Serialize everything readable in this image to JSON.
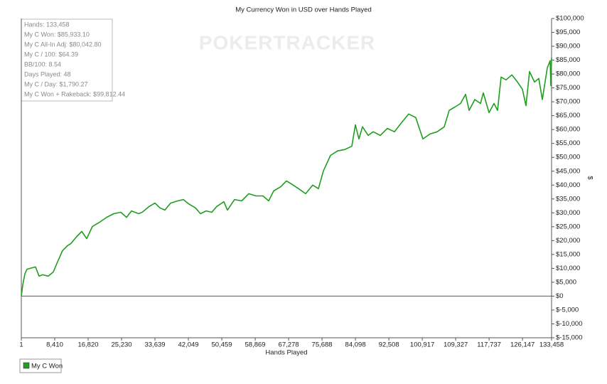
{
  "chart_data": {
    "type": "line",
    "title": "My Currency Won in USD over Hands Played",
    "xlabel": "Hands Played",
    "ylabel": "$",
    "watermark": "POKERTRACKER",
    "stats": [
      "Hands: 133,458",
      "My C Won: $85,933.10",
      "My C All-In Adj: $80,042.80",
      "My C / 100: $64.39",
      "BB/100: 8.54",
      "Days Played: 48",
      "My C / Day: $1,790.27",
      "My C Won + Rakeback: $99,812.44"
    ],
    "xlim": [
      1,
      133458
    ],
    "ylim": [
      -15000,
      100000
    ],
    "xticks": [
      1,
      {
        "value": 8410,
        "label": "8,410"
      },
      {
        "value": 16820,
        "label": "16,820"
      },
      {
        "value": 25230,
        "label": "25,230"
      },
      {
        "value": 33639,
        "label": "33,639"
      },
      {
        "value": 42049,
        "label": "42,049"
      },
      {
        "value": 50459,
        "label": "50,459"
      },
      {
        "value": 58869,
        "label": "58,869"
      },
      {
        "value": 67278,
        "label": "67,278"
      },
      {
        "value": 75688,
        "label": "75,688"
      },
      {
        "value": 84098,
        "label": "84,098"
      },
      {
        "value": 92508,
        "label": "92,508"
      },
      {
        "value": 100917,
        "label": "100,917"
      },
      {
        "value": 109327,
        "label": "109,327"
      },
      {
        "value": 117737,
        "label": "117,737"
      },
      {
        "value": 126147,
        "label": "126,147"
      },
      {
        "value": 133458,
        "label": "133,458"
      }
    ],
    "yticks": [
      {
        "value": -15000,
        "label": "$-15,000"
      },
      {
        "value": -10000,
        "label": "$-10,000"
      },
      {
        "value": -5000,
        "label": "$-5,000"
      },
      {
        "value": 0,
        "label": "$0"
      },
      {
        "value": 5000,
        "label": "$5,000"
      },
      {
        "value": 10000,
        "label": "$10,000"
      },
      {
        "value": 15000,
        "label": "$15,000"
      },
      {
        "value": 20000,
        "label": "$20,000"
      },
      {
        "value": 25000,
        "label": "$25,000"
      },
      {
        "value": 30000,
        "label": "$30,000"
      },
      {
        "value": 35000,
        "label": "$35,000"
      },
      {
        "value": 40000,
        "label": "$40,000"
      },
      {
        "value": 45000,
        "label": "$45,000"
      },
      {
        "value": 50000,
        "label": "$50,000"
      },
      {
        "value": 55000,
        "label": "$55,000"
      },
      {
        "value": 60000,
        "label": "$60,000"
      },
      {
        "value": 65000,
        "label": "$65,000"
      },
      {
        "value": 70000,
        "label": "$70,000"
      },
      {
        "value": 75000,
        "label": "$75,000"
      },
      {
        "value": 80000,
        "label": "$80,000"
      },
      {
        "value": 85000,
        "label": "$85,000"
      },
      {
        "value": 90000,
        "label": "$90,000"
      },
      {
        "value": 95000,
        "label": "$95,000"
      },
      {
        "value": 100000,
        "label": "$100,000"
      }
    ],
    "grid": false,
    "legend": "bottom-left",
    "x": [
      1,
      360,
      900,
      1430,
      2680,
      3580,
      4470,
      5370,
      6800,
      8050,
      8950,
      10380,
      11630,
      12520,
      13950,
      15200,
      16460,
      17890,
      19680,
      21470,
      23260,
      25050,
      26480,
      27730,
      29520,
      30410,
      32200,
      33630,
      34890,
      36140,
      37570,
      39360,
      40790,
      42040,
      43830,
      45080,
      46510,
      47950,
      49200,
      50990,
      51880,
      53670,
      55460,
      57250,
      59040,
      60830,
      62260,
      63510,
      65300,
      66730,
      67980,
      69770,
      71560,
      73350,
      74780,
      76030,
      77820,
      79610,
      81400,
      83190,
      84080,
      84980,
      85870,
      87300,
      88560,
      90350,
      92140,
      93920,
      95710,
      97500,
      99290,
      100190,
      101080,
      102870,
      104660,
      106450,
      107700,
      109130,
      110560,
      111820,
      112710,
      114140,
      115570,
      116290,
      117720,
      118970,
      119870,
      120760,
      122010,
      123450,
      124880,
      126130,
      127020,
      127920,
      129170,
      130240,
      131140,
      132390,
      133100,
      133280,
      133458
    ],
    "series": [
      {
        "name": "My C Won",
        "color": "#1f9e1f",
        "values": [
          0,
          4000,
          8000,
          9700,
          10200,
          10500,
          7200,
          7700,
          7200,
          8700,
          11800,
          16400,
          18200,
          19000,
          21500,
          23300,
          20700,
          25100,
          26600,
          28400,
          29700,
          30200,
          28400,
          30700,
          29700,
          30200,
          32300,
          33500,
          31800,
          31000,
          33500,
          34300,
          34800,
          33300,
          31800,
          29700,
          30700,
          30200,
          32300,
          34000,
          31000,
          34800,
          34300,
          36900,
          36100,
          36100,
          34300,
          37900,
          39400,
          41500,
          40400,
          38700,
          36900,
          40000,
          38700,
          45100,
          50700,
          52300,
          52800,
          54000,
          61700,
          56600,
          61000,
          57900,
          59200,
          57900,
          60400,
          59200,
          62500,
          65600,
          64300,
          60400,
          56600,
          58400,
          59200,
          61000,
          66900,
          68100,
          69400,
          72700,
          66900,
          70800,
          69400,
          73200,
          66100,
          69400,
          66900,
          78900,
          77900,
          79700,
          77100,
          74500,
          68600,
          80900,
          77100,
          78400,
          70800,
          82200,
          84800,
          75800,
          85933
        ]
      }
    ]
  }
}
